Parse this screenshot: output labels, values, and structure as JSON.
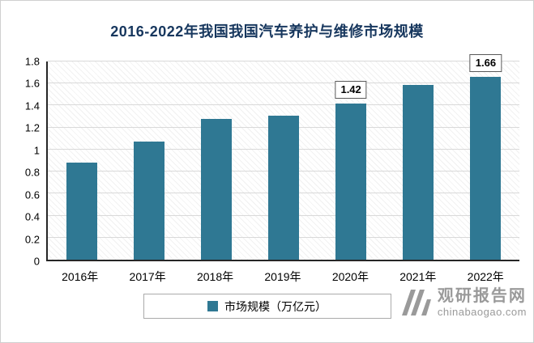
{
  "title": "2016-2022年我国我国汽车养护与维修市场规模",
  "colors": {
    "title": "#17375e",
    "bar": "#2f7893",
    "watermark": "#9a9a9a",
    "gridline": "#d9d9d9"
  },
  "chart_data": {
    "type": "bar",
    "title": "2016-2022年我国我国汽车养护与维修市场规模",
    "categories": [
      "2016年",
      "2017年",
      "2018年",
      "2019年",
      "2020年",
      "2021年",
      "2022年"
    ],
    "values": [
      0.88,
      1.07,
      1.28,
      1.31,
      1.42,
      1.59,
      1.66
    ],
    "data_labels": [
      null,
      null,
      null,
      null,
      "1.42",
      null,
      "1.66"
    ],
    "series_name": "市场规模（万亿元）",
    "xlabel": "",
    "ylabel": "",
    "ylim": [
      0,
      1.8
    ],
    "ytick_step": 0.2,
    "y_tick_labels": [
      "0",
      "0.2",
      "0.4",
      "0.6",
      "0.8",
      "1",
      "1.2",
      "1.4",
      "1.6",
      "1.8"
    ],
    "grid": true,
    "legend_position": "bottom",
    "bar_color": "#2f7893"
  },
  "legend": {
    "label": "市场规模（万亿元）"
  },
  "watermark": {
    "brand": "观研报告网",
    "domain": "chinabaogao.com"
  }
}
